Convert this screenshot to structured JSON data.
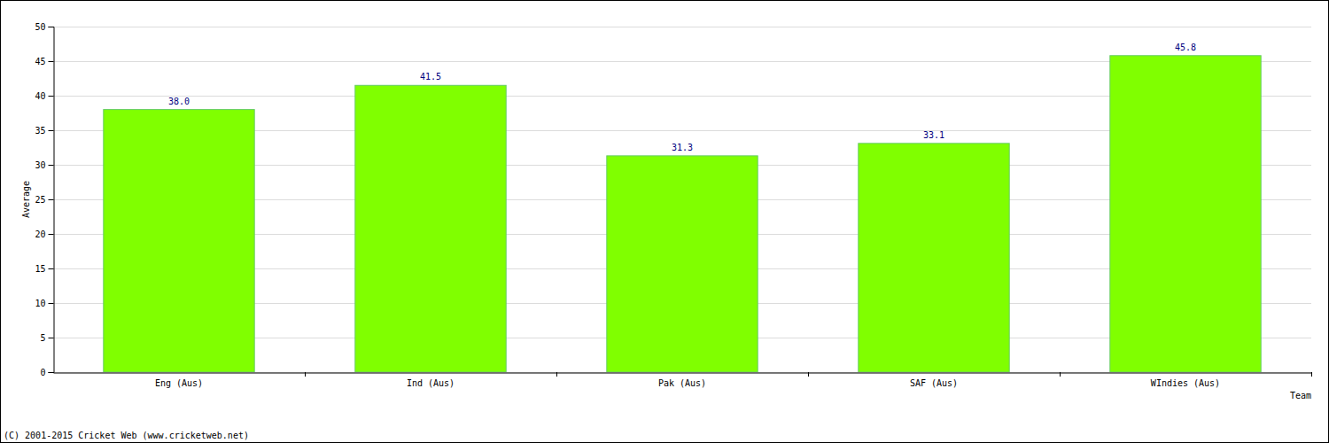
{
  "chart_data": {
    "type": "bar",
    "categories": [
      "Eng (Aus)",
      "Ind (Aus)",
      "Pak (Aus)",
      "SAF (Aus)",
      "WIndies (Aus)"
    ],
    "values": [
      38.0,
      41.5,
      31.3,
      33.1,
      45.8
    ],
    "value_labels": [
      "38.0",
      "41.5",
      "31.3",
      "33.1",
      "45.8"
    ],
    "color": "#80ff00",
    "ylim": [
      0,
      50
    ],
    "yticks": [
      0,
      5,
      10,
      15,
      20,
      25,
      30,
      35,
      40,
      45,
      50
    ],
    "grid": true,
    "data_labels": true,
    "y_label": "Average",
    "x_label": "Team",
    "annotations": [
      "(C) 2001-2015 Cricket Web (www.cricketweb.net)"
    ]
  }
}
